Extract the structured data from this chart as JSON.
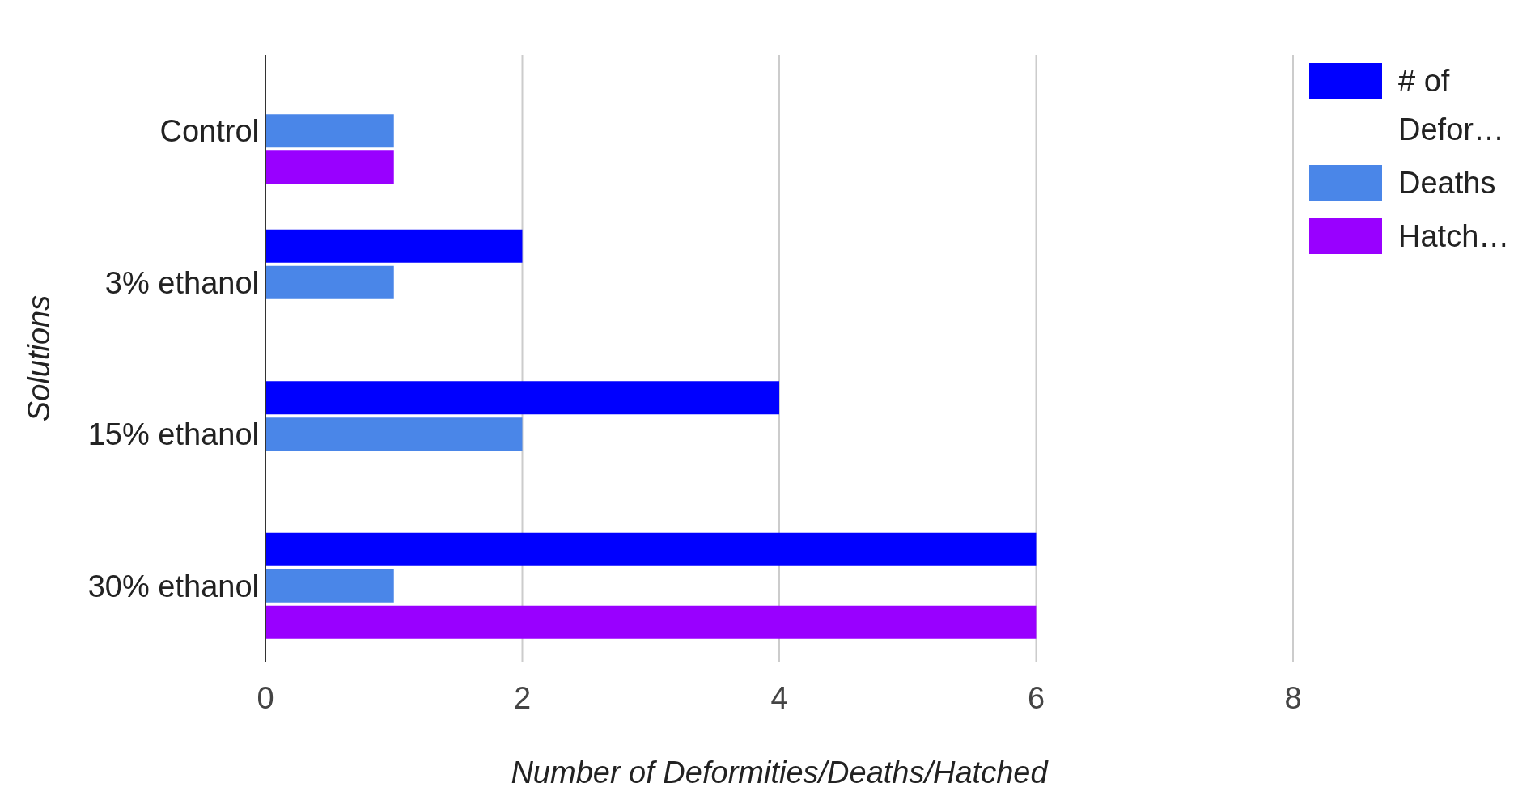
{
  "chart_data": {
    "type": "bar",
    "orientation": "horizontal",
    "categories": [
      "Control",
      "3% ethanol",
      "15% ethanol",
      "30% ethanol"
    ],
    "series": [
      {
        "name": "# of Defor…",
        "color": "#0000ff",
        "values": [
          0,
          2,
          4,
          6
        ]
      },
      {
        "name": "Deaths",
        "color": "#4a86e8",
        "values": [
          1,
          1,
          2,
          1
        ]
      },
      {
        "name": "Hatch…",
        "color": "#9900ff",
        "values": [
          1,
          0,
          0,
          6
        ]
      }
    ],
    "xlim": [
      0,
      8
    ],
    "xticks": [
      0,
      2,
      4,
      6,
      8
    ],
    "grid": "x",
    "legend": "top right",
    "xlabel": "Number of Deformities/Deaths/Hatched",
    "ylabel": "Solutions"
  }
}
